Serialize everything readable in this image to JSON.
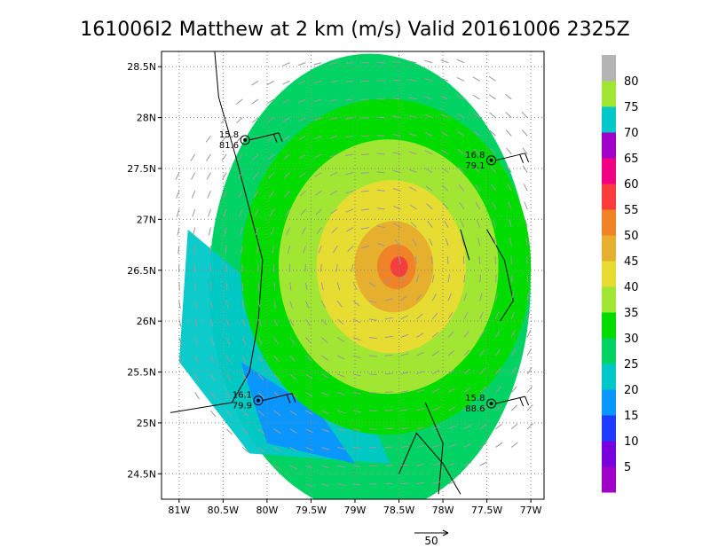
{
  "chart_data": {
    "type": "heatmap",
    "title": "161006I2 Matthew at 2 km (m/s) Valid 20161006 2325Z",
    "xlabel": "",
    "ylabel": "",
    "xlim": [
      -81.2,
      -76.85
    ],
    "ylim": [
      24.25,
      28.65
    ],
    "grid": true,
    "x_ticks": [
      {
        "value": -81.0,
        "label": "81W"
      },
      {
        "value": -80.5,
        "label": "80.5W"
      },
      {
        "value": -80.0,
        "label": "80W"
      },
      {
        "value": -79.5,
        "label": "79.5W"
      },
      {
        "value": -79.0,
        "label": "79W"
      },
      {
        "value": -78.5,
        "label": "78.5W"
      },
      {
        "value": -78.0,
        "label": "78W"
      },
      {
        "value": -77.5,
        "label": "77.5W"
      },
      {
        "value": -77.0,
        "label": "77W"
      }
    ],
    "y_ticks": [
      {
        "value": 24.5,
        "label": "24.5N"
      },
      {
        "value": 25.0,
        "label": "25N"
      },
      {
        "value": 25.5,
        "label": "25.5N"
      },
      {
        "value": 26.0,
        "label": "26N"
      },
      {
        "value": 26.5,
        "label": "26.5N"
      },
      {
        "value": 27.0,
        "label": "27N"
      },
      {
        "value": 27.5,
        "label": "27.5N"
      },
      {
        "value": 28.0,
        "label": "28N"
      },
      {
        "value": 28.5,
        "label": "28.5N"
      }
    ],
    "storm_center": {
      "lon": -78.75,
      "lat": 26.5
    },
    "colorbar": {
      "labels": [
        "5",
        "10",
        "15",
        "20",
        "25",
        "30",
        "35",
        "40",
        "45",
        "50",
        "55",
        "60",
        "65",
        "70",
        "75",
        "80"
      ],
      "colors": [
        "#a000c8",
        "#7800dc",
        "#1e3cff",
        "#0a96ff",
        "#00c8c8",
        "#00d264",
        "#00dc00",
        "#a0e632",
        "#e6dc32",
        "#e6af2d",
        "#f08228",
        "#fa3c3c",
        "#f00082",
        "#a000c8",
        "#00c8c8",
        "#a0e632",
        "#b4b4b4"
      ]
    },
    "wind_rings": [
      {
        "radius_deg": 2.15,
        "color": "#00d264"
      },
      {
        "radius_deg": 1.65,
        "color": "#00dc00"
      },
      {
        "radius_deg": 1.25,
        "color": "#a0e632"
      },
      {
        "radius_deg": 0.85,
        "color": "#e6dc32"
      },
      {
        "radius_deg": 0.45,
        "color": "#e6af2d"
      },
      {
        "radius_deg": 0.22,
        "color": "#f08228"
      },
      {
        "radius_deg": 0.1,
        "color": "#fa3c3c"
      }
    ],
    "southwest_low_wind_region_color": "#00c8c8",
    "far_southwest_region_color": "#0a96ff",
    "observations": [
      {
        "lon": -80.25,
        "lat": 27.78,
        "value1": "15.8",
        "value2": "81.6"
      },
      {
        "lon": -77.45,
        "lat": 27.58,
        "value1": "16.8",
        "value2": "79.1"
      },
      {
        "lon": -80.1,
        "lat": 25.22,
        "value1": "16.1",
        "value2": "79.9"
      },
      {
        "lon": -77.45,
        "lat": 25.19,
        "value1": "15.8",
        "value2": "88.6"
      }
    ],
    "reference_vector": {
      "label": "50"
    }
  }
}
